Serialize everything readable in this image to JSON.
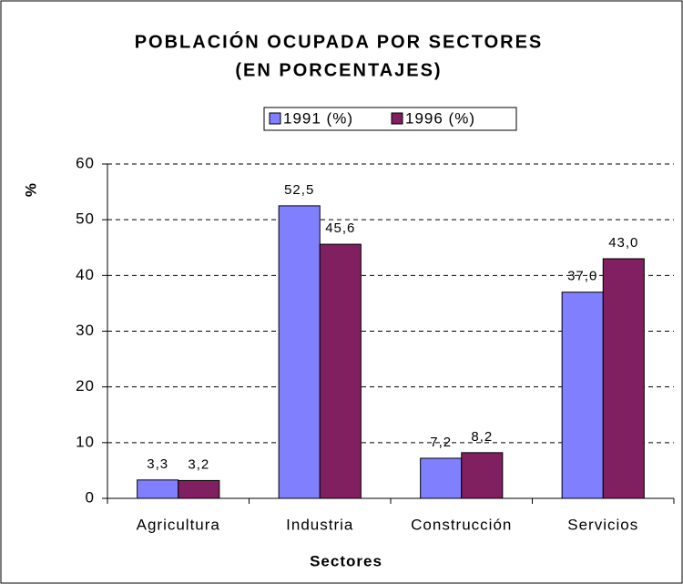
{
  "chart_data": {
    "type": "bar",
    "title": [
      "POBLACIÓN OCUPADA POR SECTORES",
      "(EN PORCENTAJES)"
    ],
    "x_label": "Sectores",
    "y_label": "%",
    "categories": [
      "Agricultura",
      "Industria",
      "Construcción",
      "Servicios"
    ],
    "series": [
      {
        "name": "1991 (%)",
        "color": "#8080ff",
        "values": [
          3.3,
          52.5,
          7.2,
          37.0
        ],
        "value_labels": [
          "3,3",
          "52,5",
          "7,2",
          "37,0"
        ]
      },
      {
        "name": "1996 (%)",
        "color": "#802060",
        "values": [
          3.2,
          45.6,
          8.2,
          43.0
        ],
        "value_labels": [
          "3,2",
          "45,6",
          "8,2",
          "43,0"
        ]
      }
    ],
    "ylim": [
      0,
      60
    ],
    "yticks": [
      0,
      10,
      20,
      30,
      40,
      50,
      60
    ],
    "grid": true,
    "legend": "top"
  }
}
